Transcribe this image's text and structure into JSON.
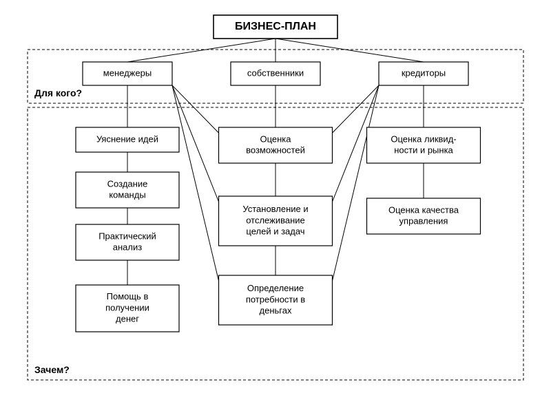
{
  "diagram": {
    "type": "flowchart",
    "background_color": "#ffffff",
    "stroke_color": "#000000",
    "font_family": "Arial",
    "title": {
      "text": "БИЗНЕС-ПЛАН",
      "fontsize": 16,
      "fontweight": "bold"
    },
    "sections": {
      "for_whom": {
        "label": "Для кого?",
        "fontsize": 14,
        "fontweight": "bold"
      },
      "why": {
        "label": "Зачем?",
        "fontsize": 14,
        "fontweight": "bold"
      }
    },
    "audiences": {
      "managers": "менеджеры",
      "owners": "собственники",
      "creditors": "кредиторы"
    },
    "managers_chain": [
      "Уяснение идей",
      "Создание команды",
      "Практический анализ",
      "Помощь в получении денег"
    ],
    "owners_chain": [
      "Оценка возможностей",
      "Установление и отслеживание целей и задач",
      "Определение потребности в деньгах"
    ],
    "creditors_chain": [
      "Оценка ликвид- ности и рынка",
      "Оценка качества управления"
    ],
    "node_fontsize": 13,
    "node_stroke_width": 1.2,
    "dashed_pattern": "4 3"
  }
}
